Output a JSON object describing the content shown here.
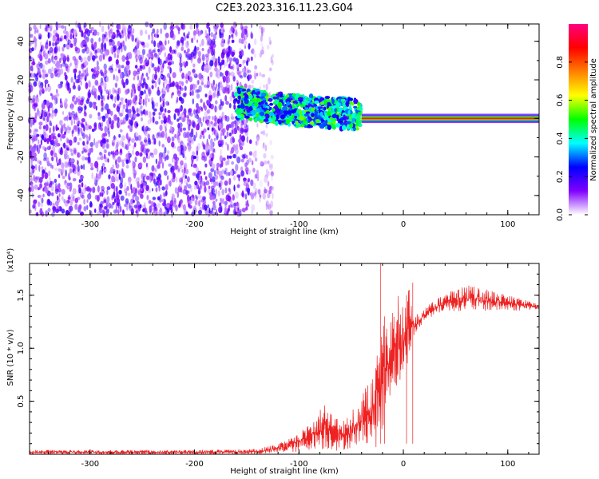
{
  "title": "C2E3.2023.316.11.23.G04",
  "chart_data": [
    {
      "type": "heatmap",
      "xlabel": "Height of straight line (km)",
      "ylabel": "Frequency (Hz)",
      "xlim": [
        -358,
        130
      ],
      "ylim": [
        -50,
        49
      ],
      "xticks": [
        -300,
        -200,
        -100,
        0,
        100
      ],
      "yticks": [
        -40,
        -20,
        0,
        20,
        40
      ],
      "xtick_labels": [
        "-300",
        "-200",
        "-100",
        "0",
        "100"
      ],
      "ytick_labels": [
        "-40",
        "-20",
        "0",
        "20",
        "40"
      ],
      "colorbar": {
        "label": "Normalized spectral amplitude",
        "range": [
          0,
          1
        ],
        "ticks": [
          0.0,
          0.2,
          0.4,
          0.6,
          0.8
        ],
        "tick_labels": [
          "0.0",
          "0.2",
          "0.4",
          "0.6",
          "0.8"
        ],
        "colors": [
          "#ffffff",
          "#8000ff",
          "#0000ff",
          "#00ffff",
          "#00ff00",
          "#ffff00",
          "#ff8000",
          "#ff0000",
          "#ff0080"
        ]
      },
      "regions": [
        {
          "name": "noise",
          "x_range": [
            -358,
            -145
          ],
          "f_range": [
            -50,
            49
          ],
          "amplitude": 0.12
        },
        {
          "name": "sparse-noise",
          "x_range": [
            -145,
            -125
          ],
          "f_range": [
            -50,
            49
          ],
          "amplitude": 0.05
        },
        {
          "name": "broad-signal",
          "x_range": [
            -160,
            -40
          ],
          "f_center": [
            [
              -160,
              8
            ],
            [
              -100,
              4
            ],
            [
              -40,
              2
            ]
          ],
          "f_halfwidth": 8,
          "amplitude": 0.35
        },
        {
          "name": "narrow-signal",
          "x_range": [
            -40,
            130
          ],
          "f_center": 0,
          "f_halfwidth": 1.5,
          "amplitude": 0.85
        }
      ]
    },
    {
      "type": "line",
      "xlabel": "Height of straight line (km)",
      "ylabel": "SNR (10 * v/v)",
      "yscale_label": "(x10⁴)",
      "xlim": [
        -358,
        130
      ],
      "ylim": [
        0,
        1.8
      ],
      "xticks": [
        -300,
        -200,
        -100,
        0,
        100
      ],
      "yticks": [
        0.5,
        1.0,
        1.5
      ],
      "xtick_labels": [
        "-300",
        "-200",
        "-100",
        "0",
        "100"
      ],
      "ytick_labels": [
        "0.5",
        "1.0",
        "1.5"
      ],
      "color": "#ee2222",
      "envelope_x": [
        -358,
        -300,
        -200,
        -140,
        -120,
        -100,
        -85,
        -75,
        -60,
        -50,
        -40,
        -30,
        -25,
        -20,
        -15,
        -10,
        -5,
        0,
        5,
        10,
        20,
        30,
        40,
        60,
        80,
        100,
        120,
        130
      ],
      "envelope_lo": [
        0.0,
        0.0,
        0.0,
        0.0,
        0.01,
        0.02,
        0.05,
        0.04,
        0.03,
        0.06,
        0.1,
        0.1,
        0.05,
        0.2,
        0.5,
        0.6,
        0.6,
        0.7,
        0.9,
        1.1,
        1.25,
        1.32,
        1.35,
        1.35,
        1.35,
        1.35,
        1.36,
        1.36
      ],
      "envelope_hi": [
        0.04,
        0.04,
        0.04,
        0.05,
        0.1,
        0.2,
        0.35,
        0.5,
        0.3,
        0.4,
        0.55,
        0.75,
        1.0,
        1.2,
        1.3,
        1.35,
        1.5,
        1.4,
        1.6,
        1.3,
        1.38,
        1.45,
        1.52,
        1.6,
        1.56,
        1.5,
        1.45,
        1.42
      ],
      "spikes": [
        {
          "x": -22,
          "y": 1.8
        },
        {
          "x": -18,
          "y": 1.3
        },
        {
          "x": 9,
          "y": 1.62
        },
        {
          "x": 3,
          "y": 1.5
        }
      ]
    }
  ]
}
